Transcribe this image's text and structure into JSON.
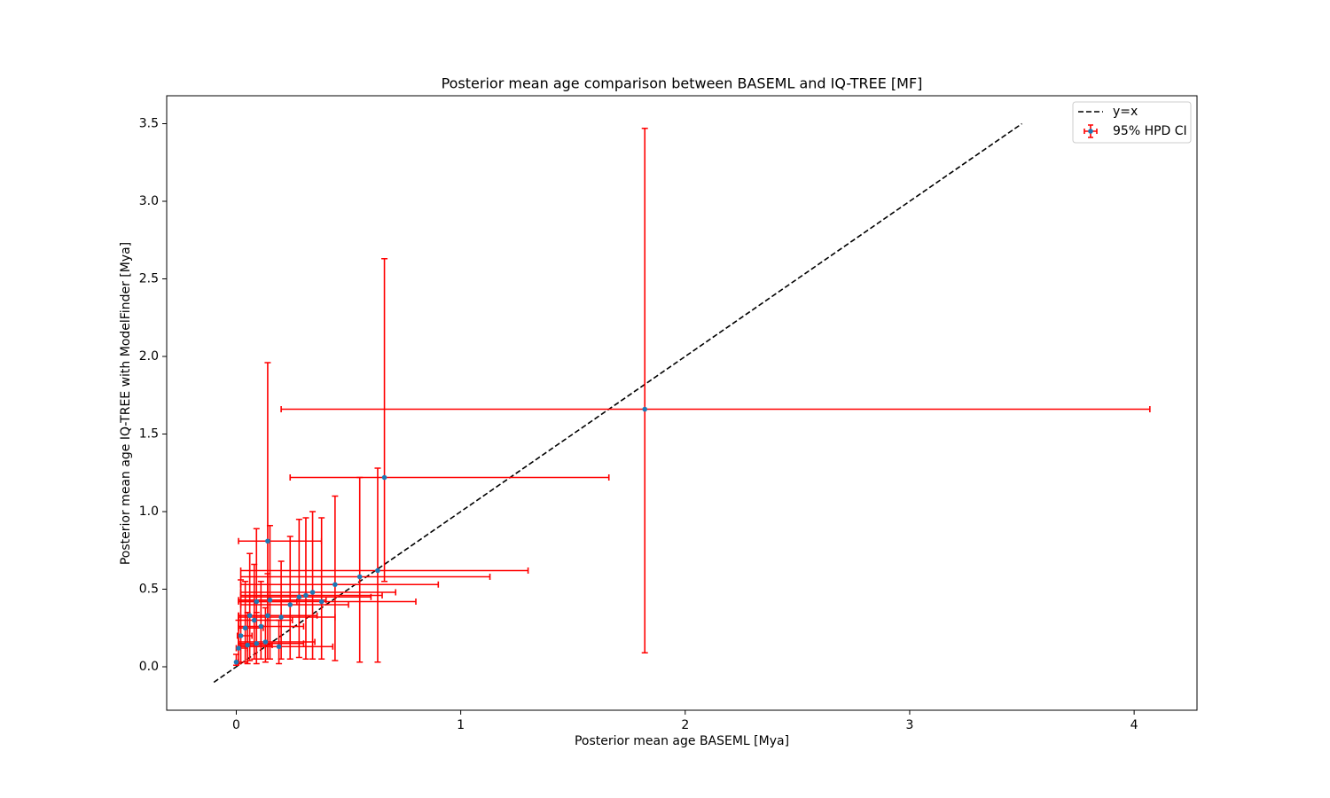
{
  "chart_data": {
    "type": "errorbar",
    "title": "Posterior mean age comparison between BASEML and IQ-TREE [MF]",
    "x_label": "Posterior mean age BASEML [Mya]",
    "y_label": "Posterior mean age IQ-TREE with ModelFinder [Mya]",
    "xlim": [
      -0.31,
      4.28
    ],
    "ylim": [
      -0.28,
      3.68
    ],
    "xticks": [
      0,
      1,
      2,
      3,
      4
    ],
    "yticks": [
      {
        "value": 0,
        "label": "0.0"
      },
      0.5,
      {
        "value": 1,
        "label": "1.0"
      },
      1.5,
      {
        "value": 2,
        "label": "2.0"
      },
      2.5,
      {
        "value": 3,
        "label": "3.0"
      },
      3.5
    ],
    "legend": "upper right",
    "reference_line": {
      "name": "y=x",
      "color": "#000000",
      "dashed": true,
      "x": [
        -0.1,
        3.5
      ],
      "y": [
        -0.1,
        3.5
      ]
    },
    "series": [
      {
        "name": "95% HPD CI",
        "color": "#1f77b4",
        "error_color": "#ff0000",
        "x": [
          1.82,
          0.66,
          0.63,
          0.55,
          0.44,
          0.14,
          0.38,
          0.34,
          0.31,
          0.28,
          0.24,
          0.19,
          0.2,
          0.15,
          0.14,
          0.11,
          0.09,
          0.08,
          0.06,
          0.05,
          0.04,
          0.02,
          0.01,
          0.0,
          0.13,
          0.09
        ],
        "y": [
          1.66,
          1.22,
          0.62,
          0.58,
          0.53,
          0.81,
          0.42,
          0.48,
          0.46,
          0.45,
          0.4,
          0.13,
          0.32,
          0.43,
          0.33,
          0.26,
          0.42,
          0.3,
          0.33,
          0.14,
          0.25,
          0.2,
          0.12,
          0.03,
          0.16,
          0.15
        ],
        "x_lower": [
          0.2,
          0.24,
          0.02,
          0.02,
          0.02,
          0.01,
          0.02,
          0.02,
          0.02,
          0.02,
          0.02,
          0.01,
          0.01,
          0.01,
          0.01,
          0.01,
          0.01,
          0.01,
          0.01,
          0.01,
          0.01,
          0.005,
          0.0,
          0.0,
          0.01,
          0.01
        ],
        "x_upper": [
          4.07,
          1.66,
          1.3,
          1.13,
          0.9,
          0.38,
          0.8,
          0.71,
          0.65,
          0.6,
          0.5,
          0.43,
          0.44,
          0.4,
          0.36,
          0.3,
          0.27,
          0.25,
          0.2,
          0.16,
          0.12,
          0.07,
          0.05,
          0.01,
          0.35,
          0.3
        ],
        "y_lower": [
          0.09,
          0.55,
          0.03,
          0.03,
          0.04,
          0.3,
          0.05,
          0.05,
          0.05,
          0.06,
          0.05,
          0.02,
          0.05,
          0.05,
          0.05,
          0.05,
          0.05,
          0.05,
          0.04,
          0.02,
          0.03,
          0.03,
          0.02,
          0.01,
          0.03,
          0.02
        ],
        "y_upper": [
          3.47,
          2.63,
          1.28,
          1.22,
          1.1,
          1.96,
          0.96,
          1.0,
          0.96,
          0.95,
          0.84,
          0.3,
          0.68,
          0.91,
          0.6,
          0.55,
          0.89,
          0.66,
          0.73,
          0.35,
          0.55,
          0.56,
          0.3,
          0.08,
          0.38,
          0.35
        ]
      }
    ]
  }
}
